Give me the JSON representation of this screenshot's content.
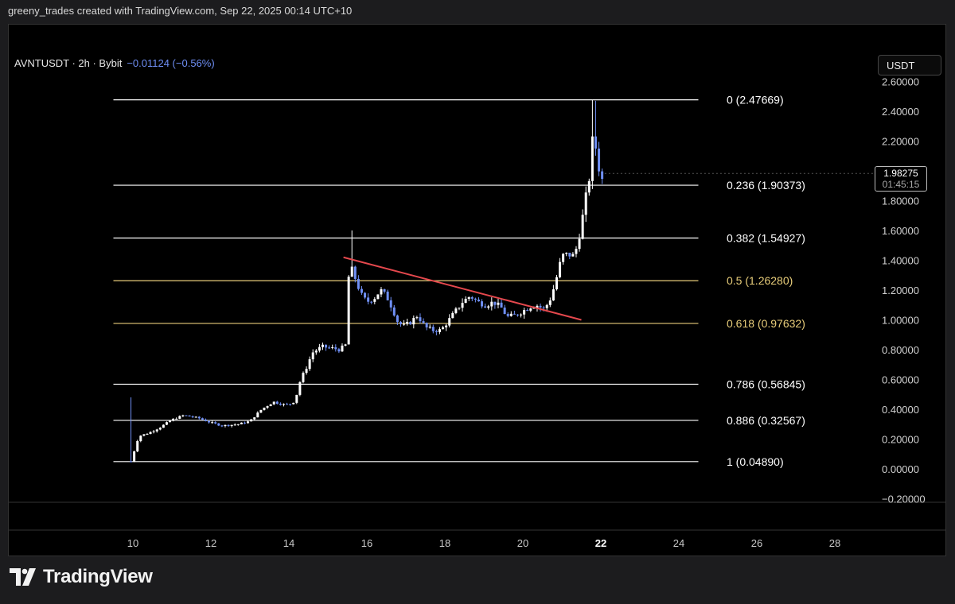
{
  "header": {
    "attribution": "greeny_trades created with TradingView.com, Sep 22, 2025 00:14 UTC+10"
  },
  "symbol": {
    "label": "AVNTUSDT · 2h · Bybit",
    "change": "−0.01124 (−0.56%)"
  },
  "currency_button": "USDT",
  "last_price": {
    "value": "1.98275",
    "countdown": "01:45:15"
  },
  "brand": {
    "name": "TradingView"
  },
  "colors": {
    "background": "#000000",
    "candle_up": "#ffffff",
    "candle_down": "#6f8ff5",
    "fib_line": "#ffffff",
    "fib_golden": "#e8cd7a",
    "trendline": "#e5484d"
  },
  "chart_data": {
    "type": "candlestick",
    "title": "AVNTUSDT · 2h · Bybit",
    "ylim": [
      -0.2,
      2.6
    ],
    "y_ticks": [
      "2.60000",
      "2.40000",
      "2.20000",
      "2.00000",
      "1.80000",
      "1.60000",
      "1.40000",
      "1.20000",
      "1.00000",
      "0.80000",
      "0.60000",
      "0.40000",
      "0.20000",
      "0.00000",
      "−0.20000"
    ],
    "y_tick_values": [
      2.6,
      2.4,
      2.2,
      2.0,
      1.8,
      1.6,
      1.4,
      1.2,
      1.0,
      0.8,
      0.6,
      0.4,
      0.2,
      0.0,
      -0.2
    ],
    "x_ticks": [
      "10",
      "12",
      "14",
      "16",
      "18",
      "20",
      "22",
      "24",
      "26",
      "28"
    ],
    "x_tick_values": [
      10,
      12,
      14,
      16,
      18,
      20,
      22,
      24,
      26,
      28
    ],
    "x_bold_tick": "22",
    "fib_levels": [
      {
        "label": "0 (2.47669)",
        "value": 2.47669,
        "golden": false
      },
      {
        "label": "0.236 (1.90373)",
        "value": 1.90373,
        "golden": false
      },
      {
        "label": "0.382 (1.54927)",
        "value": 1.54927,
        "golden": false
      },
      {
        "label": "0.5 (1.26280)",
        "value": 1.2628,
        "golden": true
      },
      {
        "label": "0.618 (0.97632)",
        "value": 0.97632,
        "golden": true
      },
      {
        "label": "0.786 (0.56845)",
        "value": 0.56845,
        "golden": false
      },
      {
        "label": "0.886 (0.32567)",
        "value": 0.32567,
        "golden": false
      },
      {
        "label": "1 (0.04890)",
        "value": 0.0489,
        "golden": false
      }
    ],
    "fib_range": {
      "x_start": 9.5,
      "x_end": 24.5
    },
    "trendline": {
      "x1": 15.4,
      "y1": 1.42,
      "x2": 21.5,
      "y2": 1.0
    },
    "close_path": [
      [
        9.95,
        0.05
      ],
      [
        10.15,
        0.22
      ],
      [
        10.4,
        0.24
      ],
      [
        10.7,
        0.28
      ],
      [
        11.0,
        0.33
      ],
      [
        11.3,
        0.36
      ],
      [
        11.7,
        0.34
      ],
      [
        12.0,
        0.31
      ],
      [
        12.3,
        0.29
      ],
      [
        12.7,
        0.3
      ],
      [
        13.0,
        0.32
      ],
      [
        13.3,
        0.4
      ],
      [
        13.6,
        0.45
      ],
      [
        13.9,
        0.43
      ],
      [
        14.1,
        0.44
      ],
      [
        14.2,
        0.5
      ],
      [
        14.3,
        0.6
      ],
      [
        14.45,
        0.68
      ],
      [
        14.6,
        0.78
      ],
      [
        14.85,
        0.82
      ],
      [
        15.1,
        0.81
      ],
      [
        15.3,
        0.8
      ],
      [
        15.45,
        0.83
      ],
      [
        15.55,
        1.38
      ],
      [
        15.7,
        1.28
      ],
      [
        15.85,
        1.17
      ],
      [
        16.0,
        1.12
      ],
      [
        16.2,
        1.15
      ],
      [
        16.35,
        1.2
      ],
      [
        16.5,
        1.16
      ],
      [
        16.65,
        1.08
      ],
      [
        16.8,
        0.98
      ],
      [
        16.95,
        0.96
      ],
      [
        17.1,
        0.98
      ],
      [
        17.3,
        1.03
      ],
      [
        17.5,
        0.95
      ],
      [
        17.7,
        0.93
      ],
      [
        17.9,
        0.93
      ],
      [
        18.05,
        0.98
      ],
      [
        18.25,
        1.05
      ],
      [
        18.45,
        1.12
      ],
      [
        18.65,
        1.16
      ],
      [
        18.85,
        1.12
      ],
      [
        19.05,
        1.1
      ],
      [
        19.25,
        1.12
      ],
      [
        19.45,
        1.08
      ],
      [
        19.6,
        1.02
      ],
      [
        19.8,
        1.03
      ],
      [
        20.0,
        1.06
      ],
      [
        20.2,
        1.09
      ],
      [
        20.35,
        1.1
      ],
      [
        20.55,
        1.07
      ],
      [
        20.7,
        1.14
      ],
      [
        20.8,
        1.22
      ],
      [
        20.9,
        1.32
      ],
      [
        21.0,
        1.43
      ],
      [
        21.15,
        1.44
      ],
      [
        21.3,
        1.43
      ],
      [
        21.4,
        1.5
      ],
      [
        21.5,
        1.64
      ],
      [
        21.6,
        1.8
      ],
      [
        21.7,
        1.95
      ],
      [
        21.75,
        2.1
      ],
      [
        21.8,
        2.25
      ],
      [
        21.85,
        2.18
      ],
      [
        21.92,
        2.08
      ],
      [
        22.0,
        1.92
      ],
      [
        22.1,
        1.98
      ]
    ],
    "last_price": 1.98275
  }
}
